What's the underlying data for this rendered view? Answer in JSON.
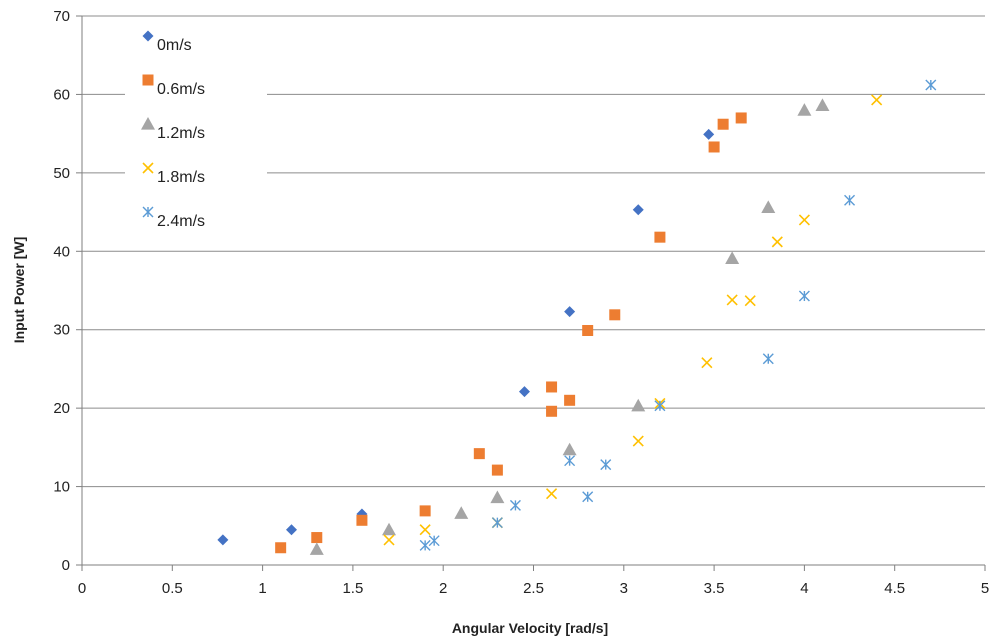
{
  "chart_data": {
    "type": "scatter",
    "title": "",
    "xlabel": "Angular Velocity [rad/s]",
    "ylabel": "Input Power [W]",
    "xlim": [
      0,
      5
    ],
    "ylim": [
      0,
      70
    ],
    "xticks": [
      0,
      0.5,
      1,
      1.5,
      2,
      2.5,
      3,
      3.5,
      4,
      4.5,
      5
    ],
    "xtick_labels": [
      "0",
      "0.5",
      "1",
      "1.5",
      "2",
      "2.5",
      "3",
      "3.5",
      "4",
      "4.5",
      "5"
    ],
    "yticks": [
      0,
      10,
      20,
      30,
      40,
      50,
      60,
      70
    ],
    "ytick_labels": [
      "0",
      "10",
      "20",
      "30",
      "40",
      "50",
      "60",
      "70"
    ],
    "grid": "horizontal",
    "legend_position": "top-left",
    "series": [
      {
        "name": "0m/s",
        "marker": "diamond",
        "color": "#4472C4",
        "points": [
          [
            0.78,
            3.2
          ],
          [
            1.16,
            4.5
          ],
          [
            1.55,
            6.5
          ],
          [
            2.45,
            22.1
          ],
          [
            2.7,
            32.3
          ],
          [
            3.08,
            45.3
          ],
          [
            3.47,
            54.9
          ]
        ]
      },
      {
        "name": "0.6m/s",
        "marker": "square",
        "color": "#ED7D31",
        "points": [
          [
            1.1,
            2.2
          ],
          [
            1.3,
            3.5
          ],
          [
            1.55,
            5.7
          ],
          [
            1.9,
            6.9
          ],
          [
            2.2,
            14.2
          ],
          [
            2.3,
            12.1
          ],
          [
            2.6,
            19.6
          ],
          [
            2.6,
            22.7
          ],
          [
            2.7,
            21.0
          ],
          [
            2.8,
            29.9
          ],
          [
            2.95,
            31.9
          ],
          [
            3.2,
            41.8
          ],
          [
            3.5,
            53.3
          ],
          [
            3.55,
            56.2
          ],
          [
            3.65,
            57.0
          ]
        ]
      },
      {
        "name": "1.2m/s",
        "marker": "triangle",
        "color": "#A5A5A5",
        "points": [
          [
            1.3,
            2.0
          ],
          [
            1.7,
            4.5
          ],
          [
            2.1,
            6.6
          ],
          [
            2.3,
            8.6
          ],
          [
            2.7,
            14.7
          ],
          [
            3.08,
            20.3
          ],
          [
            3.6,
            39.1
          ],
          [
            3.8,
            45.6
          ],
          [
            4.0,
            58.0
          ],
          [
            4.1,
            58.6
          ]
        ]
      },
      {
        "name": "1.8m/s",
        "marker": "x",
        "color": "#FFC000",
        "points": [
          [
            1.7,
            3.2
          ],
          [
            1.9,
            4.5
          ],
          [
            2.3,
            5.4
          ],
          [
            2.6,
            9.1
          ],
          [
            3.08,
            15.8
          ],
          [
            3.2,
            20.6
          ],
          [
            3.46,
            25.8
          ],
          [
            3.6,
            33.8
          ],
          [
            3.7,
            33.7
          ],
          [
            3.85,
            41.2
          ],
          [
            4.0,
            44.0
          ],
          [
            4.4,
            59.3
          ]
        ]
      },
      {
        "name": "2.4m/s",
        "marker": "asterisk",
        "color": "#5B9BD5",
        "points": [
          [
            1.9,
            2.5
          ],
          [
            1.95,
            3.1
          ],
          [
            2.3,
            5.4
          ],
          [
            2.4,
            7.6
          ],
          [
            2.7,
            13.3
          ],
          [
            2.8,
            8.7
          ],
          [
            2.9,
            12.8
          ],
          [
            3.2,
            20.3
          ],
          [
            3.8,
            26.3
          ],
          [
            4.0,
            34.3
          ],
          [
            4.25,
            46.5
          ],
          [
            4.7,
            61.2
          ]
        ]
      }
    ]
  }
}
